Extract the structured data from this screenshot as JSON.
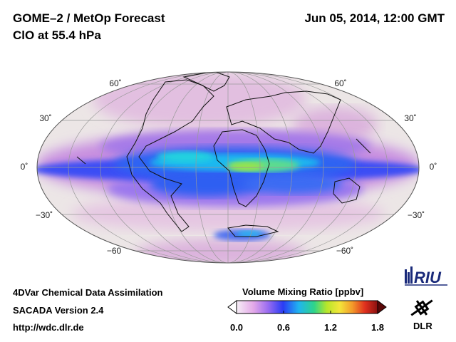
{
  "header": {
    "title_line1": "GOME–2 / MetOp Forecast",
    "title_line2": "ClO at 55.4 hPa",
    "datetime": "Jun 05, 2014, 12:00 GMT"
  },
  "map": {
    "projection": "Mollweide",
    "lat_labels_left": [
      "60˚",
      "30˚",
      "0˚",
      "−30˚",
      "−60"
    ],
    "lat_labels_right": [
      "60˚",
      "30˚",
      "0˚",
      "−30˚",
      "−60˚"
    ]
  },
  "footer": {
    "line1": "4DVar Chemical Data Assimilation",
    "line2": "SACADA Version 2.4",
    "line3": "http://wdc.dlr.de"
  },
  "colorbar": {
    "title": "Volume Mixing Ratio [ppbv]",
    "ticks": [
      "0.0",
      "0.6",
      "1.2",
      "1.8"
    ],
    "min": 0.0,
    "max": 1.8
  },
  "logos": {
    "riu": "RIU",
    "dlr": "DLR"
  },
  "colors": {
    "background": "#ffffff",
    "map_fill": "#ece6e6"
  }
}
